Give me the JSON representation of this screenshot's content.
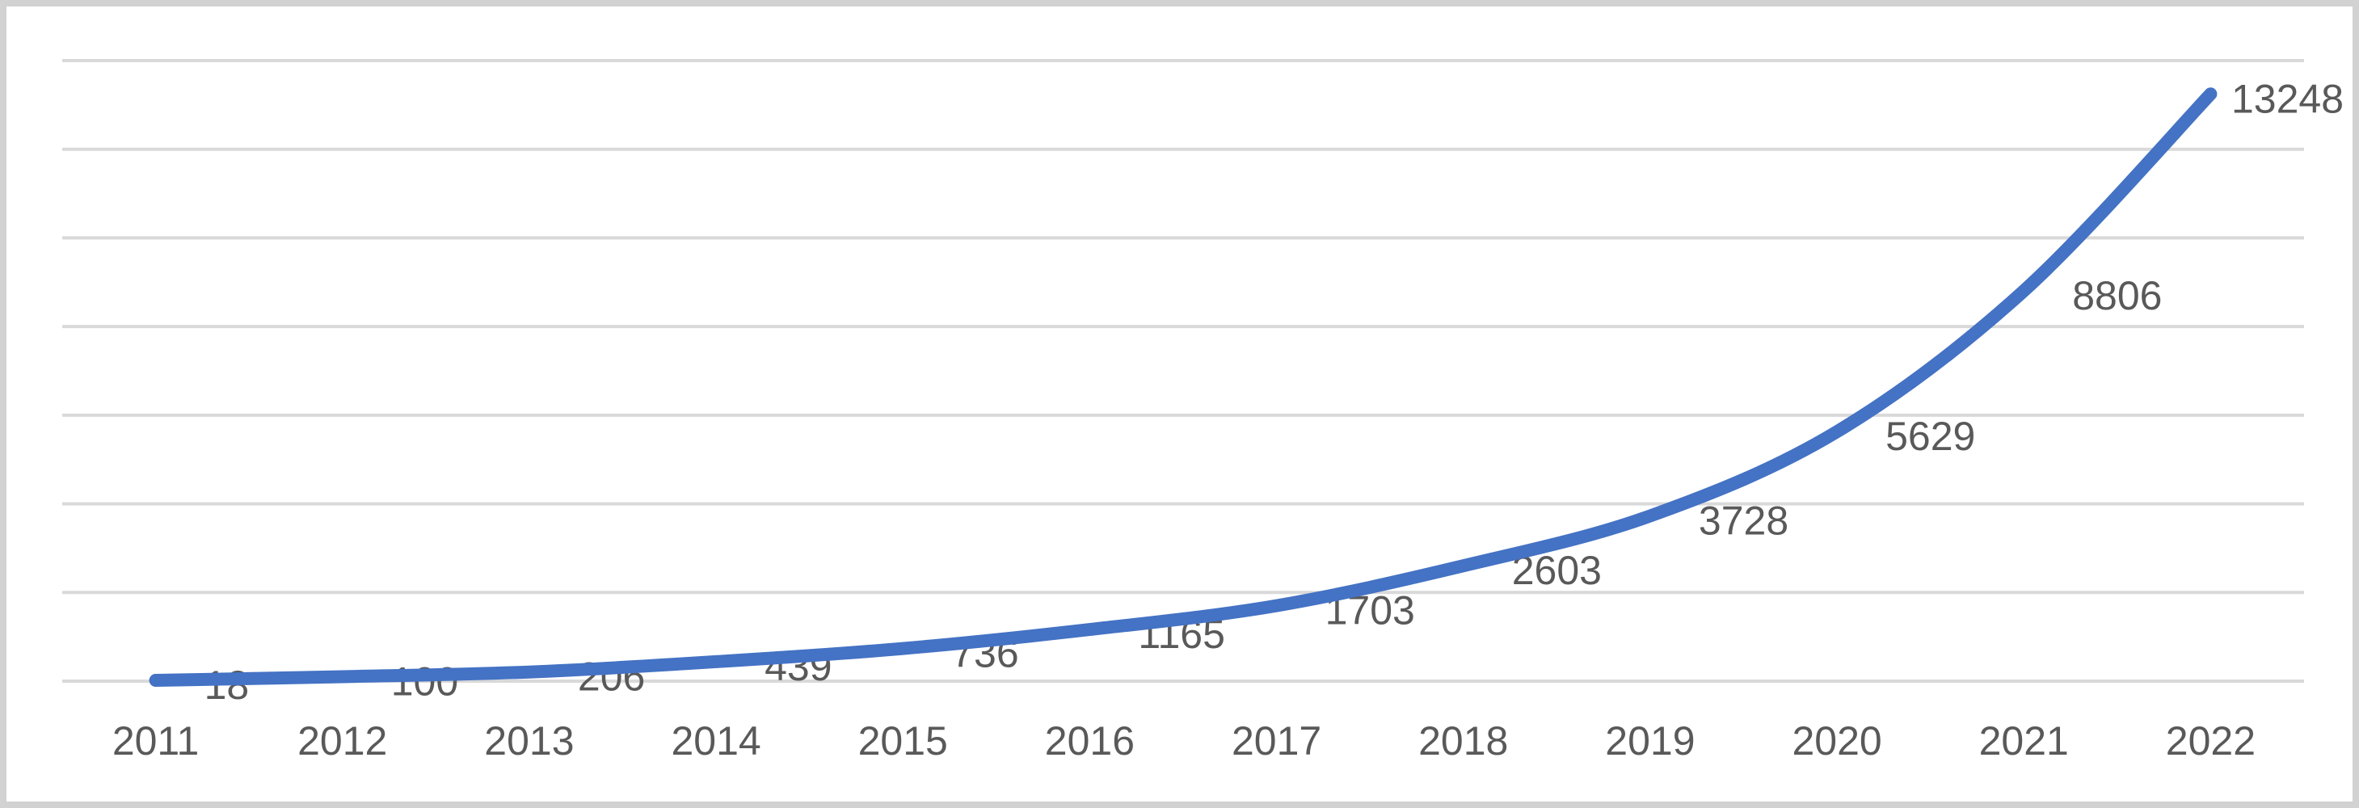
{
  "chart_data": {
    "type": "line",
    "title": "",
    "xlabel": "",
    "ylabel": "",
    "categories": [
      "2011",
      "2012",
      "2013",
      "2014",
      "2015",
      "2016",
      "2017",
      "2018",
      "2019",
      "2020",
      "2021",
      "2022"
    ],
    "series": [
      {
        "name": "",
        "values": [
          18,
          100,
          206,
          439,
          736,
          1165,
          1703,
          2603,
          3728,
          5629,
          8806,
          13248
        ]
      }
    ],
    "data_labels_visible": true,
    "ylim": [
      0,
      14000
    ],
    "y_major_unit": 2000,
    "y_tick_labels_visible": false,
    "grid": "horizontal",
    "legend": "none",
    "smoothed_line": true,
    "colors": {
      "line": "#4472C4",
      "gridline": "#D9D9D9",
      "label_text": "#595959",
      "axis_text": "#595959",
      "background": "#FFFFFF",
      "frame_border": "#D2D2D2"
    }
  }
}
